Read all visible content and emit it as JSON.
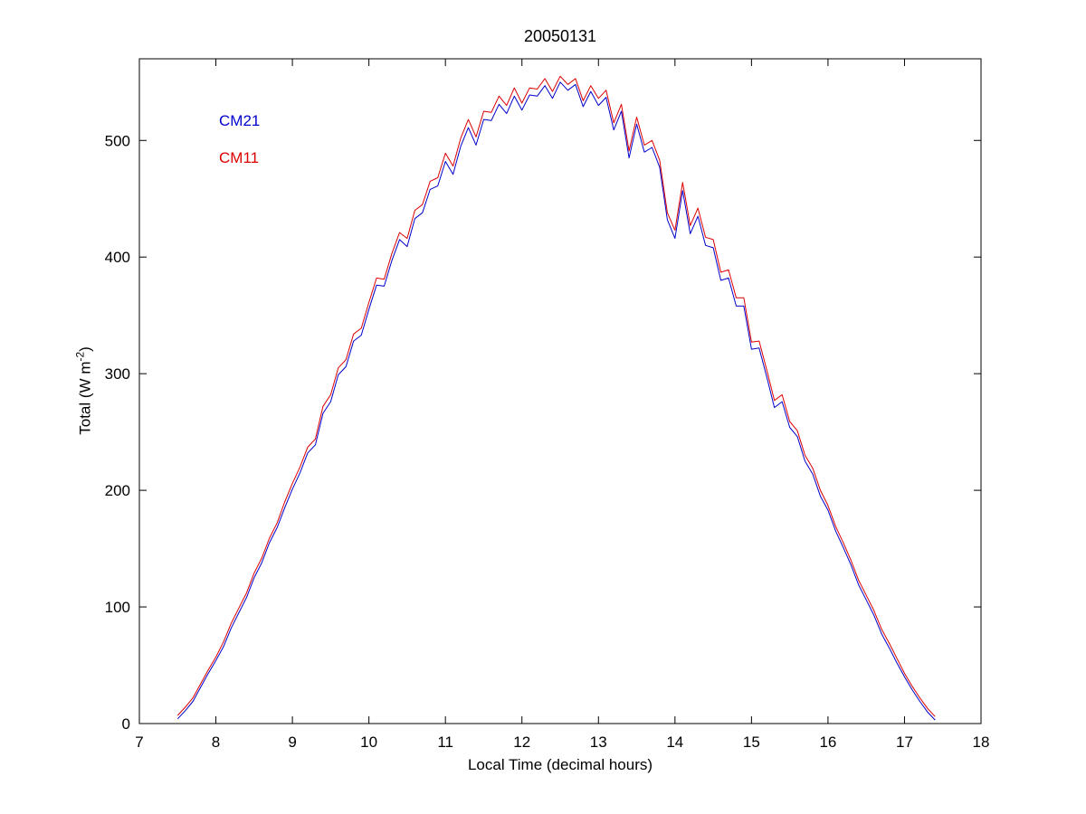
{
  "figure": {
    "title": "20050131",
    "xlabel": "Local Time (decimal hours)",
    "ylabel": {
      "pre": "Total (W m",
      "sup": "-2",
      "post": ")"
    }
  },
  "legend": {
    "items": [
      {
        "label": "CM21",
        "color": "#0000CC"
      },
      {
        "label": "CM11",
        "color": "#DD0000"
      }
    ]
  },
  "chart_data": {
    "type": "line",
    "title": "20050131",
    "xlabel": "Local Time (decimal hours)",
    "ylabel": "Total (W m^-2)",
    "xlim": [
      7,
      18
    ],
    "ylim": [
      0,
      570
    ],
    "xticks": [
      7,
      8,
      9,
      10,
      11,
      12,
      13,
      14,
      15,
      16,
      17,
      18
    ],
    "yticks": [
      0,
      100,
      200,
      300,
      400,
      500
    ],
    "grid": false,
    "legend_position": "upper-left-inside",
    "x": [
      7.5,
      7.6,
      7.7,
      7.8,
      7.9,
      8.0,
      8.1,
      8.2,
      8.3,
      8.4,
      8.5,
      8.6,
      8.7,
      8.8,
      8.9,
      9.0,
      9.1,
      9.2,
      9.3,
      9.4,
      9.5,
      9.6,
      9.7,
      9.8,
      9.9,
      10.0,
      10.1,
      10.2,
      10.3,
      10.4,
      10.5,
      10.6,
      10.7,
      10.8,
      10.9,
      11.0,
      11.1,
      11.2,
      11.3,
      11.4,
      11.5,
      11.6,
      11.7,
      11.8,
      11.9,
      12.0,
      12.1,
      12.2,
      12.3,
      12.4,
      12.5,
      12.6,
      12.7,
      12.8,
      12.9,
      13.0,
      13.1,
      13.2,
      13.3,
      13.4,
      13.5,
      13.6,
      13.7,
      13.8,
      13.9,
      14.0,
      14.1,
      14.2,
      14.3,
      14.4,
      14.5,
      14.6,
      14.7,
      14.8,
      14.9,
      15.0,
      15.1,
      15.2,
      15.3,
      15.4,
      15.5,
      15.6,
      15.7,
      15.8,
      15.9,
      16.0,
      16.1,
      16.2,
      16.3,
      16.4,
      16.5,
      16.6,
      16.7,
      16.8,
      16.9,
      17.0,
      17.1,
      17.2,
      17.3,
      17.4
    ],
    "series": [
      {
        "name": "CM21",
        "color": "#0000CC",
        "values": [
          4,
          11,
          19,
          31,
          43,
          54,
          66,
          82,
          95,
          108,
          125,
          138,
          155,
          168,
          185,
          201,
          215,
          232,
          239,
          266,
          276,
          299,
          306,
          328,
          333,
          355,
          376,
          375,
          397,
          415,
          409,
          433,
          438,
          458,
          461,
          482,
          471,
          495,
          511,
          496,
          518,
          517,
          531,
          523,
          538,
          526,
          539,
          538,
          547,
          536,
          550,
          543,
          548,
          529,
          542,
          530,
          537,
          509,
          525,
          485,
          514,
          490,
          494,
          477,
          432,
          416,
          457,
          420,
          435,
          410,
          408,
          380,
          382,
          358,
          358,
          321,
          322,
          297,
          271,
          276,
          254,
          246,
          225,
          214,
          195,
          183,
          165,
          151,
          136,
          119,
          106,
          93,
          77,
          65,
          52,
          40,
          29,
          19,
          10,
          3
        ]
      },
      {
        "name": "CM11",
        "color": "#DD0000",
        "values": [
          7,
          14,
          22,
          34,
          46,
          57,
          70,
          86,
          99,
          112,
          129,
          142,
          159,
          172,
          190,
          206,
          220,
          237,
          244,
          272,
          282,
          305,
          312,
          334,
          339,
          361,
          382,
          381,
          403,
          421,
          416,
          440,
          445,
          465,
          468,
          489,
          478,
          502,
          518,
          503,
          525,
          524,
          538,
          530,
          545,
          532,
          545,
          544,
          553,
          542,
          555,
          548,
          553,
          534,
          547,
          536,
          543,
          515,
          531,
          491,
          520,
          496,
          500,
          483,
          438,
          423,
          464,
          427,
          442,
          417,
          415,
          387,
          389,
          365,
          365,
          327,
          328,
          303,
          277,
          282,
          259,
          251,
          230,
          219,
          200,
          187,
          169,
          155,
          140,
          123,
          110,
          97,
          81,
          69,
          56,
          43,
          32,
          22,
          13,
          6
        ]
      }
    ]
  }
}
